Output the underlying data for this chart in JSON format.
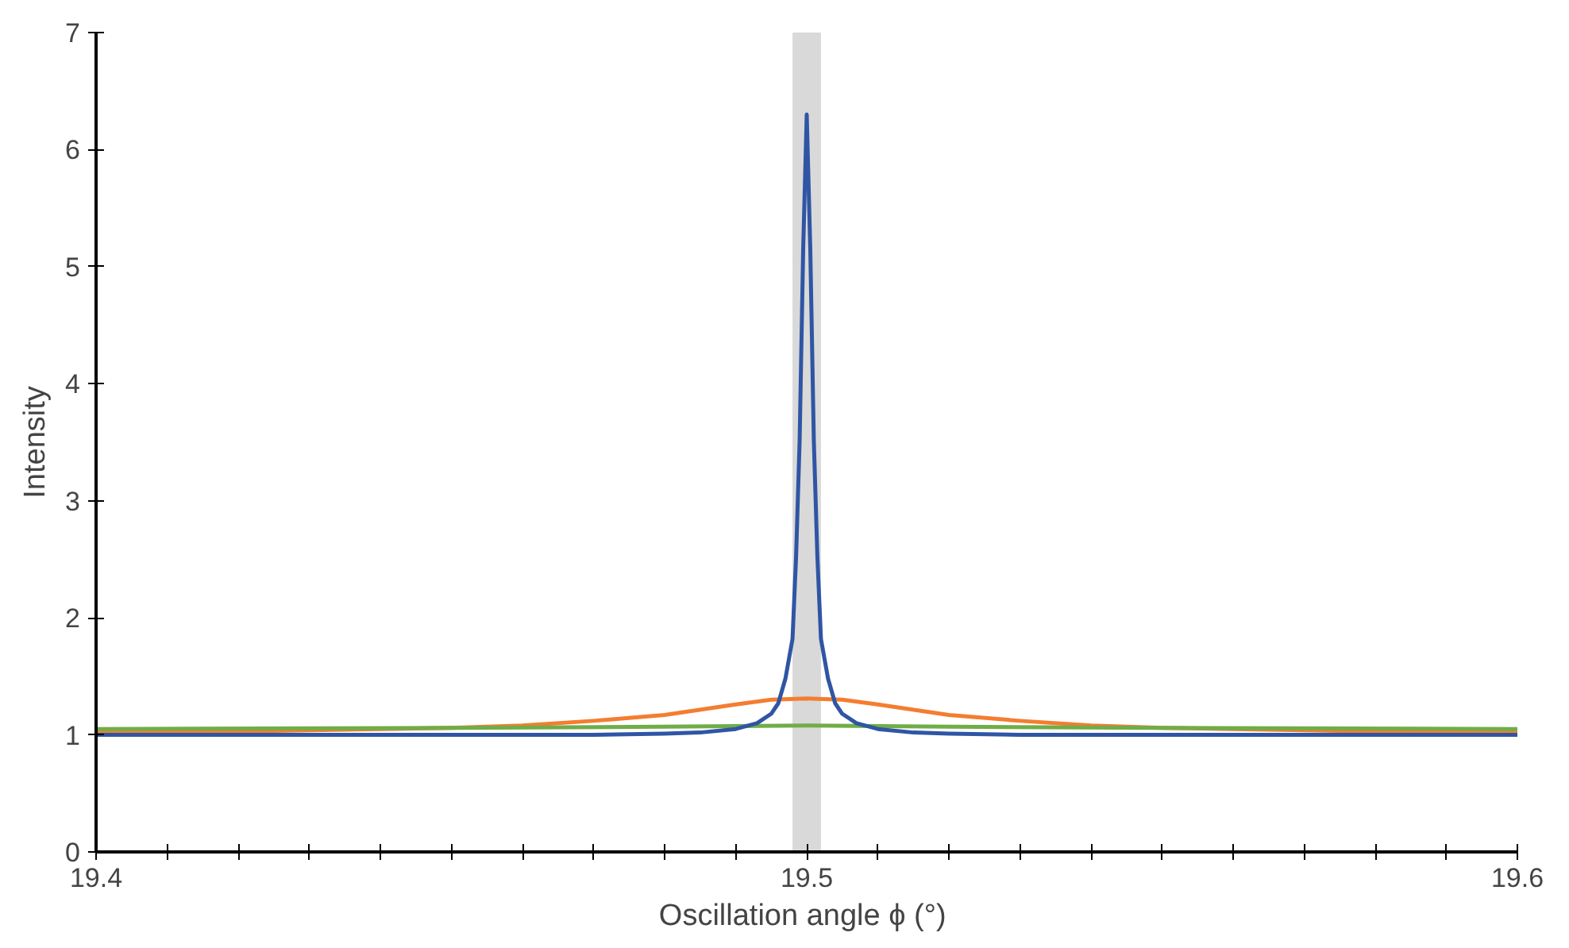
{
  "chart_data": {
    "type": "line",
    "xlabel": "Oscillation angle ϕ  (°)",
    "ylabel": "Intensity",
    "xlim": [
      19.4,
      19.6
    ],
    "ylim": [
      0,
      7
    ],
    "xticks": [
      19.4,
      {
        "value": 19.41,
        "label": null
      },
      {
        "value": 19.42,
        "label": null
      },
      {
        "value": 19.43,
        "label": null
      },
      {
        "value": 19.44,
        "label": null
      },
      {
        "value": 19.45,
        "label": null
      },
      {
        "value": 19.46,
        "label": null
      },
      {
        "value": 19.47,
        "label": null
      },
      {
        "value": 19.48,
        "label": null
      },
      {
        "value": 19.49,
        "label": null
      },
      19.5,
      {
        "value": 19.51,
        "label": null
      },
      {
        "value": 19.52,
        "label": null
      },
      {
        "value": 19.53,
        "label": null
      },
      {
        "value": 19.54,
        "label": null
      },
      {
        "value": 19.55,
        "label": null
      },
      {
        "value": 19.56,
        "label": null
      },
      {
        "value": 19.57,
        "label": null
      },
      {
        "value": 19.58,
        "label": null
      },
      {
        "value": 19.59,
        "label": null
      },
      19.6
    ],
    "yticks": [
      0,
      1,
      2,
      3,
      4,
      5,
      6,
      7
    ],
    "grid": false,
    "marker": "none",
    "line_style": "solid",
    "bands": [
      {
        "axis": "x",
        "from": 19.498,
        "to": 19.502,
        "color": "#d9d9d9"
      }
    ],
    "series": [
      {
        "color": "#f47d30",
        "x": [
          19.4,
          19.42,
          19.44,
          19.45,
          19.46,
          19.47,
          19.48,
          19.49,
          19.495,
          19.5,
          19.505,
          19.51,
          19.52,
          19.53,
          19.54,
          19.55,
          19.56,
          19.58,
          19.6
        ],
        "values": [
          1.02,
          1.03,
          1.05,
          1.06,
          1.08,
          1.12,
          1.17,
          1.26,
          1.3,
          1.31,
          1.3,
          1.26,
          1.17,
          1.12,
          1.08,
          1.06,
          1.05,
          1.03,
          1.02
        ]
      },
      {
        "color": "#70ad47",
        "x": [
          19.4,
          19.45,
          19.48,
          19.5,
          19.52,
          19.55,
          19.6
        ],
        "values": [
          1.05,
          1.06,
          1.07,
          1.08,
          1.07,
          1.06,
          1.05
        ]
      },
      {
        "color": "#2f55a4",
        "x": [
          19.4,
          19.44,
          19.46,
          19.47,
          19.48,
          19.485,
          19.49,
          19.493,
          19.495,
          19.496,
          19.497,
          19.498,
          19.4985,
          19.499,
          19.4995,
          19.5,
          19.5005,
          19.501,
          19.5015,
          19.502,
          19.503,
          19.504,
          19.505,
          19.507,
          19.51,
          19.515,
          19.52,
          19.53,
          19.54,
          19.56,
          19.6
        ],
        "values": [
          1.0,
          1.0,
          1.0,
          1.0,
          1.01,
          1.02,
          1.05,
          1.1,
          1.18,
          1.27,
          1.48,
          1.82,
          2.52,
          3.51,
          5.15,
          6.3,
          5.15,
          3.51,
          2.52,
          1.82,
          1.48,
          1.27,
          1.18,
          1.1,
          1.05,
          1.02,
          1.01,
          1.0,
          1.0,
          1.0,
          1.0
        ]
      }
    ]
  }
}
